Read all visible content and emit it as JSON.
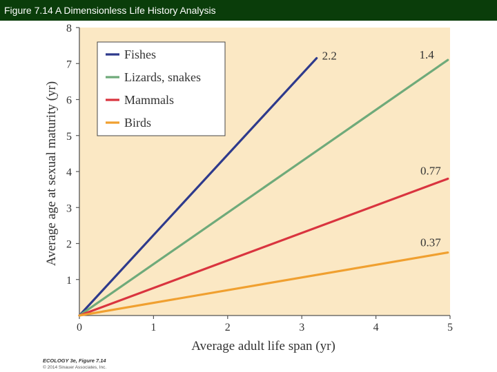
{
  "header": {
    "title": "Figure 7.14  A Dimensionless Life History Analysis"
  },
  "credits": {
    "line1": "ECOLOGY 3e, Figure 7.14",
    "line2": "© 2014 Sinauer Associates, Inc."
  },
  "colors": {
    "plot_bg": "#fbe8c4",
    "title_bar": "#0a3d0a"
  },
  "chart_data": {
    "type": "line",
    "title": "",
    "xlabel": "Average adult life span (yr)",
    "ylabel": "Average age at sexual maturity (yr)",
    "xlim": [
      0,
      5
    ],
    "ylim": [
      0,
      8
    ],
    "x_ticks": [
      "0",
      "1",
      "2",
      "3",
      "4",
      "5"
    ],
    "y_ticks": [
      "1",
      "2",
      "3",
      "4",
      "5",
      "6",
      "7",
      "8"
    ],
    "legend_position": "top-left",
    "series": [
      {
        "name": "Fishes",
        "color": "#2e3a8c",
        "slope_label": "2.2",
        "x": [
          0,
          3.2
        ],
        "y": [
          0,
          7.15
        ]
      },
      {
        "name": "Lizards, snakes",
        "color": "#6faa7a",
        "slope_label": "1.4",
        "x": [
          0,
          4.97
        ],
        "y": [
          0,
          7.1
        ]
      },
      {
        "name": "Mammals",
        "color": "#d9343f",
        "slope_label": "0.77",
        "x": [
          0,
          4.97
        ],
        "y": [
          0,
          3.8
        ]
      },
      {
        "name": "Birds",
        "color": "#f0a030",
        "slope_label": "0.37",
        "x": [
          0,
          4.97
        ],
        "y": [
          0,
          1.75
        ]
      }
    ]
  }
}
